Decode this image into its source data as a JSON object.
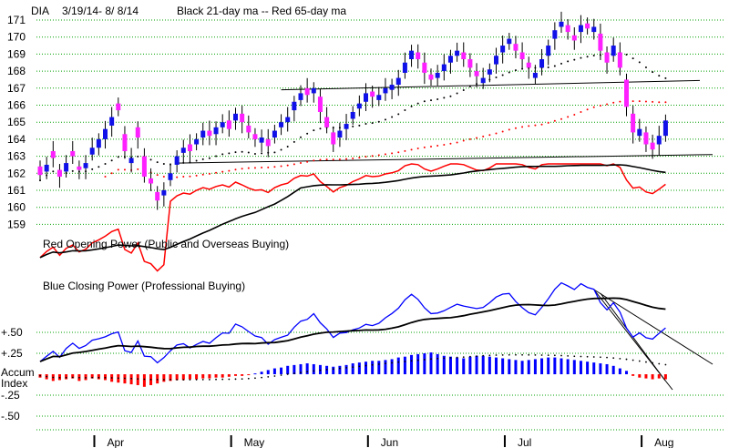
{
  "chart_data": {
    "type": "candlestick",
    "header": {
      "symbol": "DIA",
      "range": "3/19/14- 8/ 8/14",
      "legend": "Black 21-day ma --  Red 65-day ma"
    },
    "price_axis": {
      "ticks": [
        159,
        160,
        161,
        162,
        163,
        164,
        165,
        166,
        167,
        168,
        169,
        170,
        171
      ],
      "ylim": [
        158.2,
        171.4
      ]
    },
    "accum_axis": {
      "ticks": [
        {
          "value": 0.5,
          "label": "+.50"
        },
        {
          "value": 0.25,
          "label": "+.25"
        },
        {
          "value": -0.25,
          "label": "-.25"
        },
        {
          "value": -0.5,
          "label": "-.50"
        }
      ],
      "zero_label": [
        "Accum",
        "Index"
      ]
    },
    "months": [
      {
        "label": "Apr",
        "day": 10
      },
      {
        "label": "May",
        "day": 31
      },
      {
        "label": "Jun",
        "day": 52
      },
      {
        "label": "Jul",
        "day": 73
      },
      {
        "label": "Aug",
        "day": 94
      }
    ],
    "panel_labels": {
      "opening_power": "Red Opening Power (Public and Overseas Buying)",
      "closing_power": "Blue Closing Power (Professional Buying)"
    },
    "series": {
      "close": [
        161.9,
        162.5,
        162.9,
        161.8,
        162.6,
        163.0,
        162.2,
        162.6,
        163.5,
        164.0,
        164.6,
        165.3,
        165.7,
        163.3,
        162.9,
        164.1,
        161.8,
        161.4,
        160.4,
        161.0,
        162.0,
        163.0,
        163.5,
        163.3,
        164.0,
        164.5,
        164.2,
        164.7,
        165.0,
        164.6,
        165.5,
        165.0,
        164.4,
        164.0,
        164.1,
        163.6,
        164.5,
        165.0,
        165.3,
        166.2,
        166.7,
        166.6,
        167.0,
        165.6,
        164.7,
        163.7,
        164.5,
        164.9,
        165.6,
        166.1,
        166.7,
        166.5,
        166.6,
        167.0,
        167.2,
        167.6,
        168.5,
        169.2,
        168.7,
        167.9,
        167.5,
        167.9,
        168.4,
        168.9,
        169.2,
        168.7,
        168.2,
        167.7,
        167.6,
        168.1,
        168.9,
        169.5,
        169.9,
        169.2,
        168.7,
        168.2,
        167.9,
        168.7,
        169.5,
        170.4,
        170.9,
        170.3,
        169.8,
        170.7,
        170.5,
        170.6,
        169.2,
        168.5,
        169.5,
        168.2,
        165.9,
        164.4,
        164.6,
        163.7,
        163.4,
        164.2,
        165.1
      ],
      "open_offsets": [
        0.5,
        -0.4,
        0.4,
        0.4,
        -0.5,
        0.3,
        0.2,
        -0.3,
        -0.4,
        -0.5,
        -0.6,
        -0.5,
        0.4,
        1.0,
        -0.3,
        0.6,
        1.2,
        0.3,
        0.5,
        -0.3,
        -0.4,
        -0.5,
        -0.3,
        0.4,
        -0.3,
        -0.4,
        0.3,
        -0.4,
        -0.3,
        0.5,
        -0.4,
        0.5,
        0.4,
        0.3,
        -0.3,
        0.4,
        -0.4,
        -0.3,
        -0.3,
        -0.5,
        -0.4,
        0.4,
        -0.3,
        0.9,
        0.6,
        0.7,
        -0.4,
        -0.3,
        -0.4,
        -0.3,
        -0.5,
        0.3,
        -0.3,
        -0.3,
        -0.3,
        -0.4,
        -0.6,
        -0.5,
        0.4,
        0.6,
        0.3,
        -0.3,
        -0.4,
        -0.4,
        -0.3,
        0.4,
        0.5,
        0.3,
        -0.3,
        -0.3,
        -0.5,
        -0.4,
        -0.3,
        0.4,
        0.4,
        0.3,
        -0.3,
        -0.5,
        -0.6,
        -0.5,
        -0.3,
        0.4,
        0.3,
        -0.4,
        0.3,
        -0.3,
        1.0,
        0.6,
        -0.6,
        0.9,
        1.6,
        1.1,
        -0.4,
        0.7,
        0.4,
        -0.5,
        -0.9
      ],
      "accum_index": [
        -0.04,
        -0.06,
        -0.08,
        -0.07,
        -0.06,
        -0.05,
        -0.08,
        -0.07,
        -0.05,
        -0.06,
        -0.07,
        -0.09,
        -0.1,
        -0.11,
        -0.12,
        -0.13,
        -0.15,
        -0.13,
        -0.11,
        -0.09,
        -0.08,
        -0.07,
        -0.07,
        -0.06,
        -0.06,
        -0.05,
        -0.05,
        -0.04,
        -0.04,
        -0.03,
        -0.02,
        -0.02,
        -0.01,
        0.01,
        0.03,
        0.05,
        0.07,
        0.08,
        0.1,
        0.11,
        0.12,
        0.13,
        0.12,
        0.11,
        0.1,
        0.09,
        0.1,
        0.11,
        0.13,
        0.14,
        0.15,
        0.16,
        0.16,
        0.17,
        0.18,
        0.2,
        0.21,
        0.23,
        0.24,
        0.25,
        0.26,
        0.24,
        0.22,
        0.21,
        0.2,
        0.19,
        0.21,
        0.22,
        0.22,
        0.21,
        0.2,
        0.19,
        0.18,
        0.17,
        0.16,
        0.17,
        0.18,
        0.19,
        0.2,
        0.2,
        0.19,
        0.18,
        0.17,
        0.16,
        0.15,
        0.14,
        0.13,
        0.12,
        0.1,
        0.07,
        0.04,
        -0.02,
        -0.04,
        -0.05,
        -0.06,
        -0.05,
        -0.06
      ]
    },
    "colors": {
      "up": "#1010e8",
      "down": "#ff20ff",
      "ma21": "#000000",
      "ma65": "#ff0000",
      "opening_power": "#ff0000",
      "closing_power": "#0000ff",
      "grid": "#00a000",
      "accum_pos": "#0000ff",
      "accum_neg": "#ff0000"
    },
    "grid": true
  }
}
